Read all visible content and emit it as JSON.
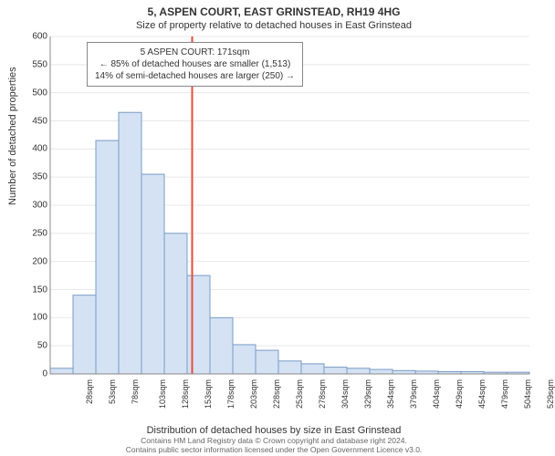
{
  "title_main": "5, ASPEN COURT, EAST GRINSTEAD, RH19 4HG",
  "title_sub": "Size of property relative to detached houses in East Grinstead",
  "y_axis_label": "Number of detached properties",
  "x_axis_label": "Distribution of detached houses by size in East Grinstead",
  "chart": {
    "type": "histogram",
    "ylim": [
      0,
      600
    ],
    "ytick_step": 50,
    "bar_fill": "#d4e2f4",
    "bar_border": "#7a9bc4",
    "grid_color": "#e8e8e8",
    "background_color": "#ffffff",
    "reference_line_color": "#e74c3c",
    "reference_value_sqm": 171,
    "x_categories": [
      "28sqm",
      "53sqm",
      "78sqm",
      "103sqm",
      "128sqm",
      "153sqm",
      "178sqm",
      "203sqm",
      "228sqm",
      "253sqm",
      "278sqm",
      "304sqm",
      "329sqm",
      "354sqm",
      "379sqm",
      "404sqm",
      "429sqm",
      "454sqm",
      "479sqm",
      "504sqm",
      "529sqm"
    ],
    "bar_values": [
      10,
      140,
      415,
      465,
      355,
      250,
      175,
      100,
      52,
      42,
      23,
      18,
      12,
      10,
      8,
      6,
      5,
      4,
      4,
      3,
      3
    ]
  },
  "annotation": {
    "line1": "5 ASPEN COURT: 171sqm",
    "line2": "← 85% of detached houses are smaller (1,513)",
    "line3": "14% of semi-detached houses are larger (250) →"
  },
  "footer": {
    "line1": "Contains HM Land Registry data © Crown copyright and database right 2024.",
    "line2": "Contains public sector information licensed under the Open Government Licence v3.0."
  }
}
